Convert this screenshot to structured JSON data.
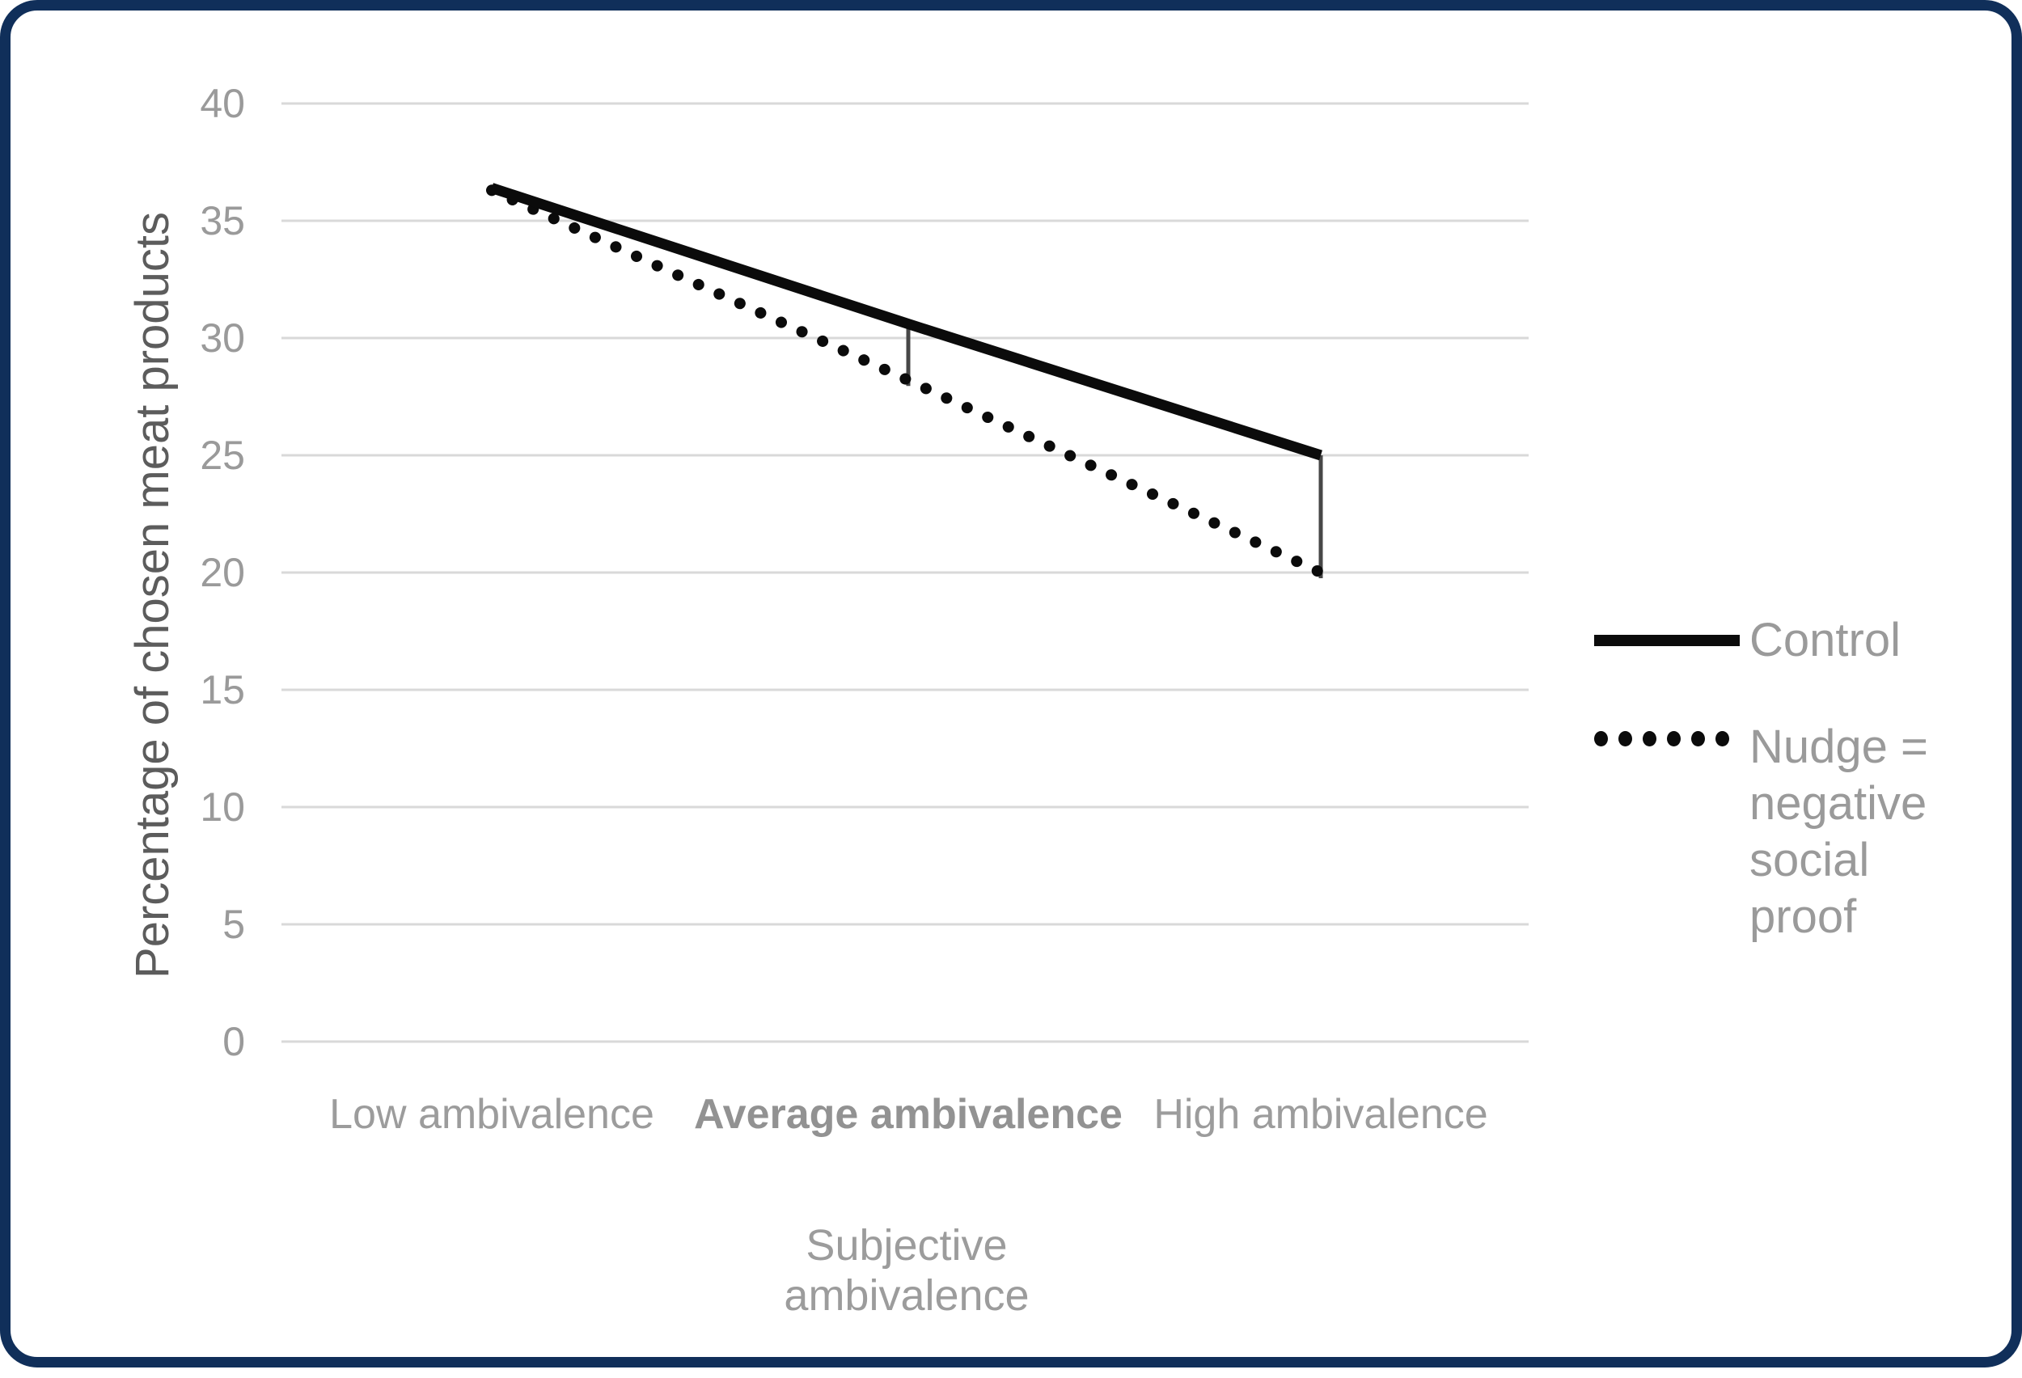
{
  "chart_data": {
    "type": "line",
    "title": "",
    "categories": [
      "Low ambivalence",
      "Average ambivalence",
      "High ambivalence"
    ],
    "bold_category_index": 1,
    "series": [
      {
        "name": "Control",
        "style": "solid",
        "color": "#0b0b0b",
        "values": [
          36.4,
          30.6,
          25.0
        ]
      },
      {
        "name": "Nudge = negative social proof",
        "style": "dotted",
        "color": "#0b0b0b",
        "values": [
          36.3,
          28.2,
          20.0
        ]
      }
    ],
    "connectors": [
      {
        "category_index": 1,
        "from_series": 0,
        "to_series": 1
      },
      {
        "category_index": 2,
        "from_series": 0,
        "to_series": 1
      }
    ],
    "xlabel": "Subjective ambivalence",
    "ylabel": "Percentage of chosen meat products",
    "ylim": [
      0,
      40
    ],
    "yticks": [
      0,
      5,
      10,
      15,
      20,
      25,
      30,
      35,
      40
    ],
    "grid": "horizontal",
    "legend_position": "right"
  },
  "colors": {
    "frame_border": "#102f5a",
    "gridline": "#d9d9d9",
    "connector": "#474747",
    "axis_text": "#9a9a9a",
    "y_title_text": "#5c5c5c",
    "line_color": "#0b0b0b"
  }
}
